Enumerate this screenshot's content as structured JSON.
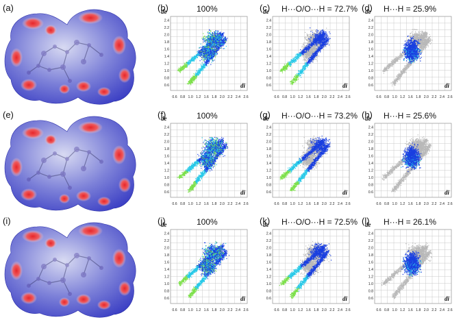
{
  "figure": {
    "rows": [
      {
        "surface_label": "(a)",
        "panels": [
          {
            "label": "(b)",
            "title": "100%",
            "kind": "full"
          },
          {
            "label": "(c)",
            "title": "H···O/O···H = 72.7%",
            "kind": "HO"
          },
          {
            "label": "(d)",
            "title": "H···H = 25.9%",
            "kind": "HH"
          }
        ]
      },
      {
        "surface_label": "(e)",
        "panels": [
          {
            "label": "(f)",
            "title": "100%",
            "kind": "full"
          },
          {
            "label": "(g)",
            "title": "H···O/O···H = 73.2%",
            "kind": "HO"
          },
          {
            "label": "(h)",
            "title": "H···H = 25.6%",
            "kind": "HH"
          }
        ]
      },
      {
        "surface_label": "(i)",
        "panels": [
          {
            "label": "(j)",
            "title": "100%",
            "kind": "full"
          },
          {
            "label": "(k)",
            "title": "H···O/O···H = 72.5%",
            "kind": "HO"
          },
          {
            "label": "(l)",
            "title": "H···H = 26.1%",
            "kind": "HH"
          }
        ]
      }
    ],
    "axes": {
      "y_label": "de",
      "x_label": "di",
      "y_ticks": [
        "0.6",
        "0.8",
        "1.0",
        "1.2",
        "1.4",
        "1.6",
        "1.8",
        "2.0",
        "2.2",
        "2.4"
      ],
      "x_ticks": [
        "0.6",
        "0.8",
        "1.0",
        "1.2",
        "1.6",
        "1.8",
        "2.0",
        "2.2",
        "2.4",
        "2.6"
      ]
    },
    "colors": {
      "surface_blue": "#3b3fc4",
      "surface_white": "#f4f4fb",
      "surface_red": "#e8262a",
      "fingerprint_blue": "#1a3fe0",
      "fingerprint_cyan": "#27c9e8",
      "fingerprint_green": "#7de04a",
      "background_grey": "#b9b9b9",
      "grid": "#c8c8c8"
    }
  }
}
